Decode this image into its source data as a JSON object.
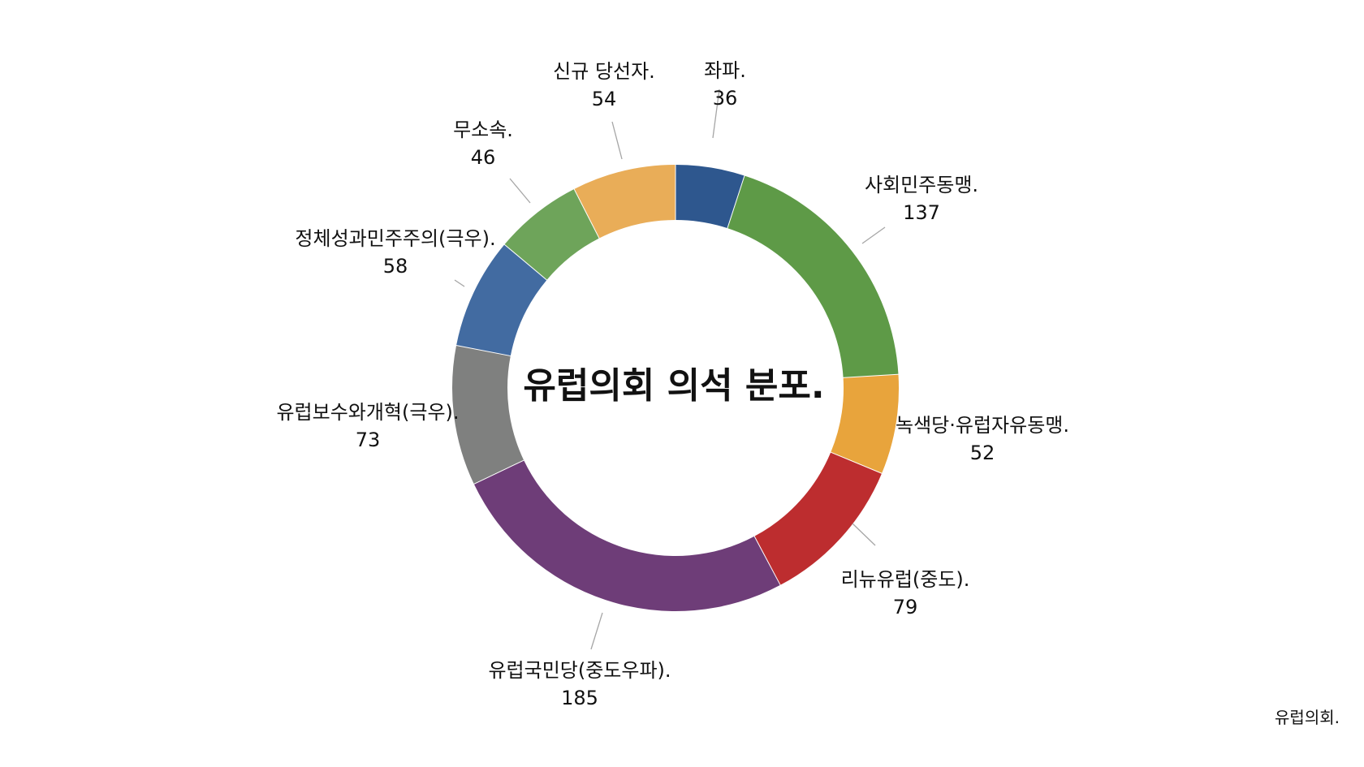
{
  "chart_data": {
    "type": "pie",
    "title": "유럽의회 의석 분포.",
    "source": "유럽의회.",
    "slices": [
      {
        "name": "좌파.",
        "value": 36,
        "color": "#2e578e"
      },
      {
        "name": "사회민주동맹.",
        "value": 137,
        "color": "#5e9a47"
      },
      {
        "name": "녹색당·유럽자유동맹.",
        "value": 52,
        "color": "#e8a43c"
      },
      {
        "name": "리뉴유럽(중도).",
        "value": 79,
        "color": "#bd2d2f"
      },
      {
        "name": "유럽국민당(중도우파).",
        "value": 185,
        "color": "#6e3d78"
      },
      {
        "name": "유럽보수와개혁(극우).",
        "value": 73,
        "color": "#7f807f"
      },
      {
        "name": "정체성과민주주의(극우).",
        "value": 58,
        "color": "#426ba1"
      },
      {
        "name": "무소속.",
        "value": 46,
        "color": "#6ea45a"
      },
      {
        "name": "신규 당선자.",
        "value": 54,
        "color": "#e9ad58"
      }
    ]
  }
}
